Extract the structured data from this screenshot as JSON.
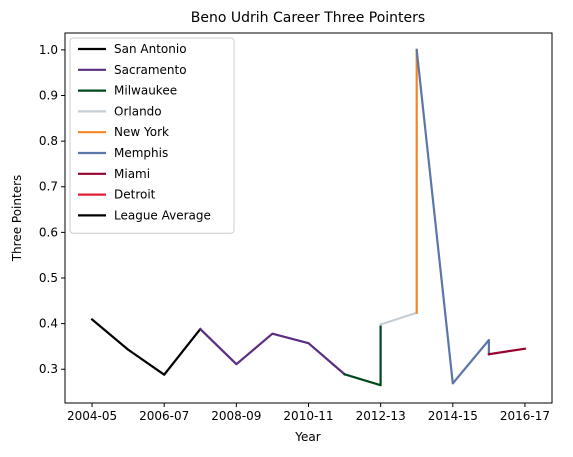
{
  "chart_data": {
    "type": "line",
    "title": "Beno Udrih Career Three Pointers",
    "xlabel": "Year",
    "ylabel": "Three Pointers",
    "x_ticks": [
      "2004-05",
      "2006-07",
      "2008-09",
      "2010-11",
      "2012-13",
      "2014-15",
      "2016-17"
    ],
    "x_tick_positions": [
      0,
      2,
      4,
      6,
      8,
      10,
      12
    ],
    "xlim": [
      -0.75,
      12.75
    ],
    "y_ticks": [
      "0.3",
      "0.4",
      "0.5",
      "0.6",
      "0.7",
      "0.8",
      "0.9",
      "1.0"
    ],
    "ylim": [
      0.226,
      1.037
    ],
    "grid": false,
    "legend_position": "upper left",
    "series": [
      {
        "name": "San Antonio",
        "color": "#000000",
        "x": [
          0,
          1,
          2,
          3
        ],
        "y": [
          0.409,
          0.343,
          0.288,
          0.388
        ]
      },
      {
        "name": "Sacramento",
        "color": "#5a2d81",
        "x": [
          3,
          4,
          5,
          6,
          7
        ],
        "y": [
          0.388,
          0.311,
          0.378,
          0.357,
          0.289
        ]
      },
      {
        "name": "Milwaukee",
        "color": "#00471b",
        "x": [
          7,
          8,
          8
        ],
        "y": [
          0.289,
          0.265,
          0.394
        ]
      },
      {
        "name": "Orlando",
        "color": "#c4ced4",
        "x": [
          8,
          9
        ],
        "y": [
          0.398,
          0.424
        ]
      },
      {
        "name": "New York",
        "color": "#f58426",
        "x": [
          9,
          9
        ],
        "y": [
          0.424,
          1.0
        ]
      },
      {
        "name": "Memphis",
        "color": "#5d76a9",
        "x": [
          9,
          10,
          11,
          11
        ],
        "y": [
          1.0,
          0.269,
          0.364,
          0.333
        ]
      },
      {
        "name": "Miami",
        "color": "#98002e",
        "x": [
          11,
          12
        ],
        "y": [
          0.333,
          0.345
        ]
      },
      {
        "name": "Detroit",
        "color": "#e01e38",
        "x": [],
        "y": []
      },
      {
        "name": "League Average",
        "color": "#000000",
        "x": [],
        "y": []
      }
    ]
  }
}
